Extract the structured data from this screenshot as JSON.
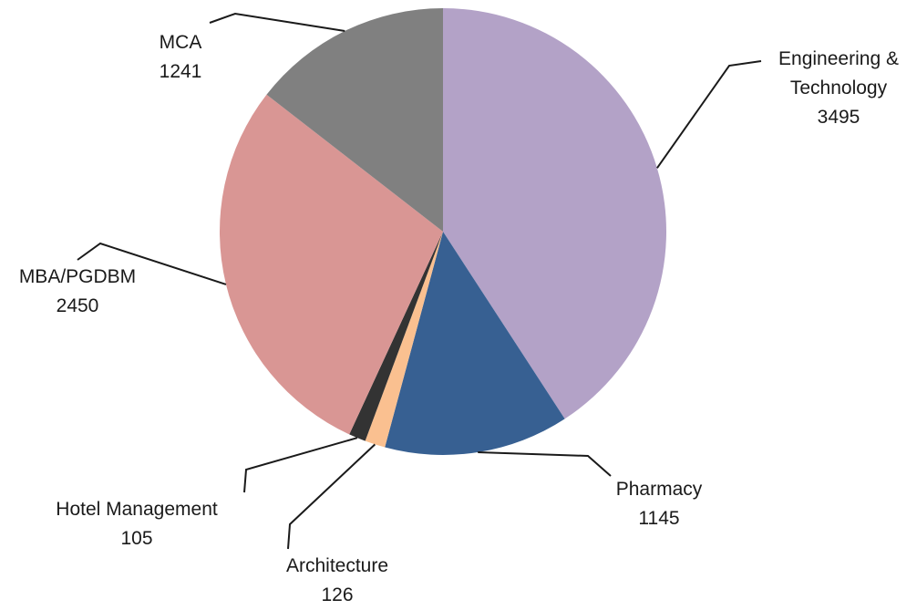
{
  "chart_data": {
    "type": "pie",
    "categories": [
      "Engineering & Technology",
      "Pharmacy",
      "Architecture",
      "Hotel Management",
      "MBA/PGDBM",
      "MCA"
    ],
    "values": [
      3495,
      1145,
      126,
      105,
      2450,
      1241
    ],
    "colors": [
      "#b3a2c7",
      "#376092",
      "#fac090",
      "#333333",
      "#d99694",
      "#808080"
    ]
  }
}
